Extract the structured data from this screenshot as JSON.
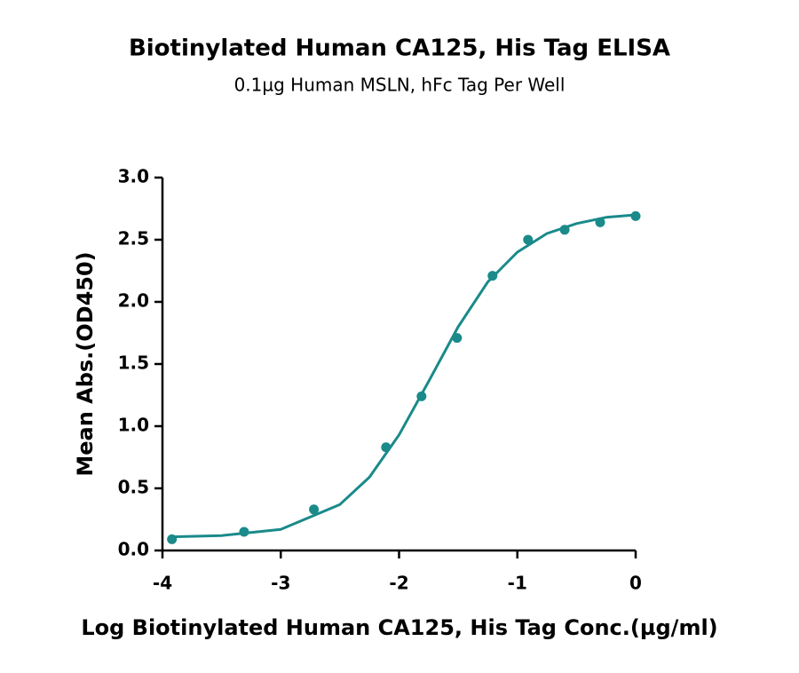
{
  "chart_data": {
    "type": "scatter",
    "title": "Biotinylated Human CA125, His Tag ELISA",
    "subtitle": "0.1µg Human MSLN, hFc Tag Per Well",
    "x_label": "Log Biotinylated Human CA125, His Tag Conc.(µg/ml)",
    "y_label": "Mean Abs.(OD450)",
    "xlim": [
      -4,
      0
    ],
    "xticks": [
      -4,
      -3,
      -2,
      -1,
      0
    ],
    "ylim": [
      0,
      3
    ],
    "yticks": [
      {
        "value": 0,
        "label": "0.0"
      },
      {
        "value": 0.5,
        "label": "0.5"
      },
      {
        "value": 1,
        "label": "1.0"
      },
      {
        "value": 1.5,
        "label": "1.5"
      },
      {
        "value": 2,
        "label": "2.0"
      },
      {
        "value": 2.5,
        "label": "2.5"
      },
      {
        "value": 3,
        "label": "3.0"
      }
    ],
    "series": [
      {
        "mode": "markers",
        "color": "#1a8a8a",
        "x": [
          -3.92,
          -3.31,
          -2.72,
          -2.11,
          -1.81,
          -1.51,
          -1.21,
          -0.91,
          -0.6,
          -0.3,
          0
        ],
        "values": [
          0.09,
          0.15,
          0.33,
          0.83,
          1.24,
          1.71,
          2.21,
          2.5,
          2.58,
          2.64,
          2.69
        ]
      },
      {
        "mode": "line",
        "color": "#1a8a8a",
        "x": [
          -3.92,
          -3.5,
          -3,
          -2.5,
          -2.25,
          -2,
          -1.75,
          -1.5,
          -1.25,
          -1,
          -0.75,
          -0.5,
          -0.25,
          0
        ],
        "values": [
          0.11,
          0.12,
          0.17,
          0.37,
          0.59,
          0.93,
          1.36,
          1.8,
          2.16,
          2.4,
          2.55,
          2.63,
          2.68,
          2.7
        ]
      }
    ]
  }
}
